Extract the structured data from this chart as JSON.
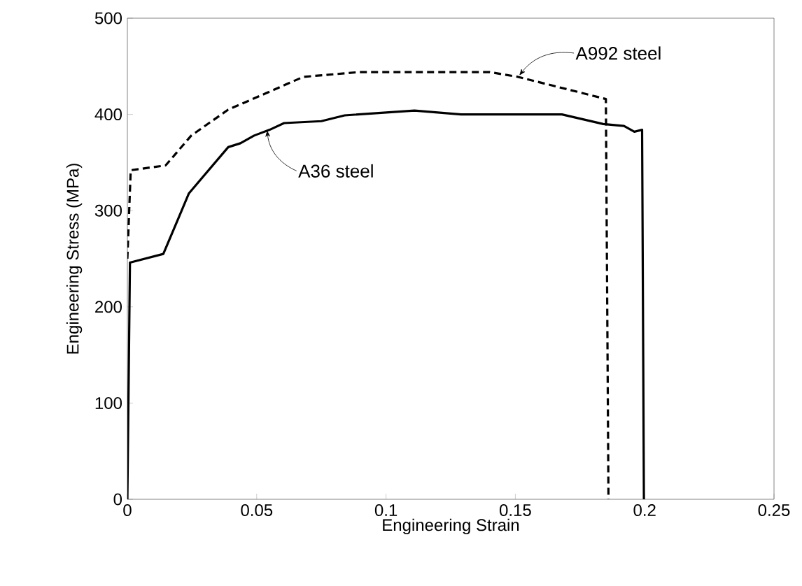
{
  "chart_data": {
    "type": "line",
    "xlabel": "Engineering Strain",
    "ylabel": "Engineering Stress (MPa)",
    "xlim": [
      0,
      0.25
    ],
    "xticks": [
      0,
      0.05,
      0.1,
      0.15,
      0.2,
      0.25
    ],
    "ylim": [
      0,
      500
    ],
    "yticks": [
      0,
      100,
      200,
      300,
      400,
      500
    ],
    "grid": false,
    "marker": "none",
    "series": [
      {
        "color": "#000000",
        "line_style": "solid",
        "x": [
          0,
          0.001,
          0.0139,
          0.0238,
          0.039,
          0.0437,
          0.049,
          0.055,
          0.0606,
          0.075,
          0.084,
          0.111,
          0.129,
          0.168,
          0.184,
          0.192,
          0.196,
          0.199,
          0.1997
        ],
        "values": [
          0,
          246,
          255,
          318,
          366,
          370,
          378,
          384,
          391,
          393,
          399,
          404,
          400,
          400,
          390,
          388,
          382,
          384,
          0
        ]
      },
      {
        "color": "#000000",
        "line_style": "dashed",
        "x": [
          0,
          0.0013,
          0.0148,
          0.0247,
          0.039,
          0.0536,
          0.068,
          0.0897,
          0.129,
          0.14,
          0.151,
          0.185,
          0.186
        ],
        "values": [
          250,
          342,
          347,
          378,
          405,
          422,
          439,
          444,
          444,
          444,
          439,
          416,
          0
        ]
      }
    ],
    "annotations": [
      {
        "text": "A992 steel",
        "x": 0.151,
        "y": 439
      },
      {
        "text": "A36 steel",
        "x": 0.0535,
        "y": 382
      }
    ]
  }
}
